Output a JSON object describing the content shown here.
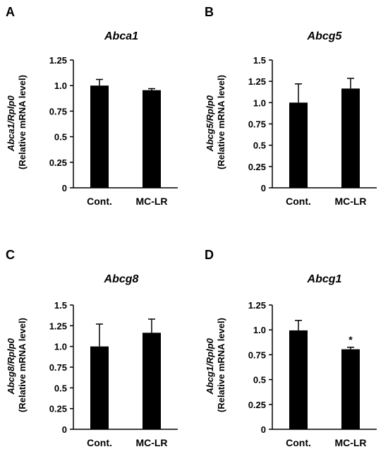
{
  "figure": {
    "panels": [
      {
        "letter": "A",
        "ylabel_gene": "Abca1/Rplp0",
        "ylabel_unit": "(Relative mRNA level)"
      },
      {
        "letter": "B",
        "ylabel_gene": "Abcg5/Rplp0",
        "ylabel_unit": "(Relative mRNA level)"
      },
      {
        "letter": "C",
        "ylabel_gene": "Abcg8/Rplp0",
        "ylabel_unit": "(Relative mRNA level)"
      },
      {
        "letter": "D",
        "ylabel_gene": "Abcg1/Rplp0",
        "ylabel_unit": "(Relative mRNA level)"
      }
    ]
  },
  "style": {
    "bar_color": "#000000",
    "axis_color": "#000000"
  },
  "chart_data": [
    {
      "type": "bar",
      "title": "Abca1",
      "categories": [
        "Cont.",
        "MC-LR"
      ],
      "values": [
        1.0,
        0.955
      ],
      "errors": [
        0.06,
        0.015
      ],
      "ylabel": "Abca1/Rplp0 (Relative mRNA level)",
      "ylim": [
        0,
        1.25
      ],
      "yticks": [
        "0",
        "0.25",
        "0.5",
        "0.75",
        "1.0",
        "1.25"
      ],
      "annotations": [
        "",
        ""
      ],
      "grid": false,
      "legend": "none"
    },
    {
      "type": "bar",
      "title": "Abcg5",
      "categories": [
        "Cont.",
        "MC-LR"
      ],
      "values": [
        1.0,
        1.165
      ],
      "errors": [
        0.22,
        0.12
      ],
      "ylabel": "Abcg5/Rplp0 (Relative mRNA level)",
      "ylim": [
        0,
        1.5
      ],
      "yticks": [
        "0",
        "0.25",
        "0.5",
        "0.75",
        "1.0",
        "1.25",
        "1.5"
      ],
      "annotations": [
        "",
        ""
      ],
      "grid": false,
      "legend": "none"
    },
    {
      "type": "bar",
      "title": "Abcg8",
      "categories": [
        "Cont.",
        "MC-LR"
      ],
      "values": [
        1.0,
        1.165
      ],
      "errors": [
        0.27,
        0.165
      ],
      "ylabel": "Abcg8/Rplp0 (Relative mRNA level)",
      "ylim": [
        0,
        1.5
      ],
      "yticks": [
        "0",
        "0.25",
        "0.5",
        "0.75",
        "1.0",
        "1.25",
        "1.5"
      ],
      "annotations": [
        "",
        ""
      ],
      "grid": false,
      "legend": "none"
    },
    {
      "type": "bar",
      "title": "Abcg1",
      "categories": [
        "Cont.",
        "MC-LR"
      ],
      "values": [
        0.995,
        0.805
      ],
      "errors": [
        0.1,
        0.02
      ],
      "ylabel": "Abcg1/Rplp0 (Relative mRNA level)",
      "ylim": [
        0,
        1.25
      ],
      "yticks": [
        "0",
        "0.25",
        "0.5",
        "0.75",
        "1.0",
        "1.25"
      ],
      "annotations": [
        "",
        "*"
      ],
      "grid": false,
      "legend": "none"
    }
  ]
}
